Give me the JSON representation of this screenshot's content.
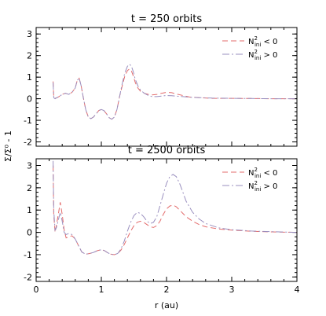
{
  "chart_data": [
    {
      "type": "line",
      "title": "t = 250 orbits",
      "xlabel": "",
      "ylabel": "Σ/Σ⁰ - 1",
      "xlim": [
        0,
        4
      ],
      "ylim": [
        -2.2,
        3.3
      ],
      "xticks": [
        0,
        1,
        2,
        3,
        4
      ],
      "yticks": [
        -2,
        -1,
        0,
        1,
        2,
        3
      ],
      "legend": {
        "placement": "top-right",
        "entries": [
          {
            "base": "N",
            "sup": "2",
            "sub": "ini",
            "rel": " < 0"
          },
          {
            "base": "N",
            "sup": "2",
            "sub": "ini",
            "rel": " > 0"
          }
        ]
      },
      "series": [
        {
          "color": "#e36b6b",
          "dash": "7,4",
          "x": [
            0.26,
            0.27,
            0.29,
            0.32,
            0.35,
            0.4,
            0.45,
            0.5,
            0.55,
            0.6,
            0.63,
            0.66,
            0.69,
            0.72,
            0.76,
            0.8,
            0.84,
            0.88,
            0.92,
            0.96,
            1.0,
            1.04,
            1.08,
            1.12,
            1.16,
            1.2,
            1.24,
            1.28,
            1.32,
            1.36,
            1.4,
            1.43,
            1.46,
            1.49,
            1.52,
            1.56,
            1.6,
            1.66,
            1.72,
            1.78,
            1.85,
            1.92,
            2.0,
            2.08,
            2.15,
            2.25,
            2.35,
            2.5,
            2.7,
            3.0,
            3.3,
            3.6,
            4.0
          ],
          "y": [
            0.8,
            0.1,
            0.02,
            0.05,
            0.1,
            0.2,
            0.25,
            0.2,
            0.3,
            0.5,
            0.85,
            0.95,
            0.6,
            0.1,
            -0.5,
            -0.85,
            -0.92,
            -0.85,
            -0.7,
            -0.55,
            -0.5,
            -0.55,
            -0.7,
            -0.88,
            -0.95,
            -0.85,
            -0.5,
            0.1,
            0.6,
            1.05,
            1.3,
            1.38,
            1.3,
            1.05,
            0.75,
            0.5,
            0.35,
            0.25,
            0.2,
            0.18,
            0.2,
            0.25,
            0.3,
            0.28,
            0.22,
            0.15,
            0.08,
            0.05,
            0.02,
            0.02,
            0.01,
            0.0,
            0.0
          ]
        },
        {
          "color": "#9a8fbf",
          "dash": "9,3,2,3",
          "x": [
            0.26,
            0.27,
            0.29,
            0.32,
            0.35,
            0.4,
            0.45,
            0.5,
            0.55,
            0.6,
            0.63,
            0.66,
            0.69,
            0.72,
            0.76,
            0.8,
            0.84,
            0.88,
            0.92,
            0.96,
            1.0,
            1.04,
            1.08,
            1.12,
            1.16,
            1.2,
            1.24,
            1.28,
            1.32,
            1.36,
            1.4,
            1.43,
            1.46,
            1.49,
            1.52,
            1.56,
            1.6,
            1.66,
            1.72,
            1.78,
            1.85,
            1.92,
            2.0,
            2.08,
            2.15,
            2.25,
            2.35,
            2.5,
            2.7,
            3.0,
            3.3,
            3.6,
            4.0
          ],
          "y": [
            0.75,
            0.05,
            0.0,
            0.05,
            0.1,
            0.2,
            0.25,
            0.2,
            0.3,
            0.5,
            0.85,
            0.95,
            0.6,
            0.1,
            -0.5,
            -0.85,
            -0.92,
            -0.85,
            -0.7,
            -0.55,
            -0.5,
            -0.55,
            -0.7,
            -0.88,
            -0.95,
            -0.85,
            -0.5,
            0.1,
            0.7,
            1.2,
            1.5,
            1.6,
            1.52,
            1.25,
            0.9,
            0.6,
            0.4,
            0.25,
            0.15,
            0.1,
            0.1,
            0.12,
            0.15,
            0.14,
            0.12,
            0.1,
            0.07,
            0.05,
            0.03,
            0.02,
            0.01,
            0.0,
            0.0
          ]
        }
      ]
    },
    {
      "type": "line",
      "title": "t = 2500 orbits",
      "xlabel": "r (au)",
      "ylabel": "Σ/Σ⁰ - 1",
      "xlim": [
        0,
        4
      ],
      "ylim": [
        -2.2,
        3.3
      ],
      "xticks": [
        0,
        1,
        2,
        3,
        4
      ],
      "yticks": [
        -2,
        -1,
        0,
        1,
        2,
        3
      ],
      "legend": {
        "placement": "top-right",
        "entries": [
          {
            "base": "N",
            "sup": "2",
            "sub": "ini",
            "rel": " < 0"
          },
          {
            "base": "N",
            "sup": "2",
            "sub": "ini",
            "rel": " > 0"
          }
        ]
      },
      "series": [
        {
          "color": "#e36b6b",
          "dash": "7,4",
          "x": [
            0.26,
            0.27,
            0.29,
            0.31,
            0.34,
            0.37,
            0.4,
            0.43,
            0.46,
            0.5,
            0.55,
            0.6,
            0.65,
            0.7,
            0.76,
            0.82,
            0.88,
            0.94,
            1.0,
            1.05,
            1.1,
            1.15,
            1.2,
            1.25,
            1.3,
            1.35,
            1.4,
            1.45,
            1.5,
            1.55,
            1.6,
            1.65,
            1.7,
            1.75,
            1.8,
            1.85,
            1.9,
            1.95,
            2.0,
            2.05,
            2.1,
            2.15,
            2.2,
            2.25,
            2.3,
            2.4,
            2.5,
            2.6,
            2.8,
            3.0,
            3.3,
            3.6,
            4.0
          ],
          "y": [
            3.0,
            0.8,
            0.0,
            0.3,
            0.8,
            1.35,
            0.8,
            0.1,
            -0.25,
            -0.2,
            -0.15,
            -0.3,
            -0.6,
            -0.88,
            -0.98,
            -0.95,
            -0.9,
            -0.82,
            -0.78,
            -0.82,
            -0.92,
            -0.98,
            -1.0,
            -0.95,
            -0.8,
            -0.55,
            -0.25,
            0.05,
            0.3,
            0.45,
            0.5,
            0.45,
            0.35,
            0.25,
            0.22,
            0.3,
            0.5,
            0.8,
            1.05,
            1.18,
            1.22,
            1.15,
            1.0,
            0.85,
            0.7,
            0.5,
            0.35,
            0.25,
            0.15,
            0.1,
            0.05,
            0.02,
            0.0
          ]
        },
        {
          "color": "#9a8fbf",
          "dash": "9,3,2,3",
          "x": [
            0.26,
            0.27,
            0.29,
            0.31,
            0.34,
            0.37,
            0.4,
            0.43,
            0.46,
            0.5,
            0.55,
            0.6,
            0.65,
            0.7,
            0.76,
            0.82,
            0.88,
            0.94,
            1.0,
            1.05,
            1.1,
            1.15,
            1.2,
            1.25,
            1.3,
            1.35,
            1.4,
            1.45,
            1.5,
            1.55,
            1.6,
            1.65,
            1.7,
            1.75,
            1.8,
            1.85,
            1.9,
            1.95,
            2.0,
            2.05,
            2.1,
            2.15,
            2.2,
            2.25,
            2.3,
            2.4,
            2.5,
            2.6,
            2.8,
            3.0,
            3.3,
            3.6,
            4.0
          ],
          "y": [
            3.2,
            1.0,
            0.1,
            0.2,
            0.55,
            0.9,
            0.5,
            0.0,
            -0.1,
            -0.05,
            -0.1,
            -0.3,
            -0.6,
            -0.88,
            -0.98,
            -0.95,
            -0.9,
            -0.82,
            -0.78,
            -0.82,
            -0.92,
            -0.98,
            -1.0,
            -0.95,
            -0.75,
            -0.4,
            0.05,
            0.45,
            0.75,
            0.9,
            0.85,
            0.7,
            0.5,
            0.4,
            0.45,
            0.7,
            1.2,
            1.7,
            2.2,
            2.5,
            2.6,
            2.5,
            2.2,
            1.8,
            1.4,
            0.9,
            0.6,
            0.4,
            0.2,
            0.12,
            0.06,
            0.03,
            0.0
          ]
        }
      ]
    }
  ]
}
